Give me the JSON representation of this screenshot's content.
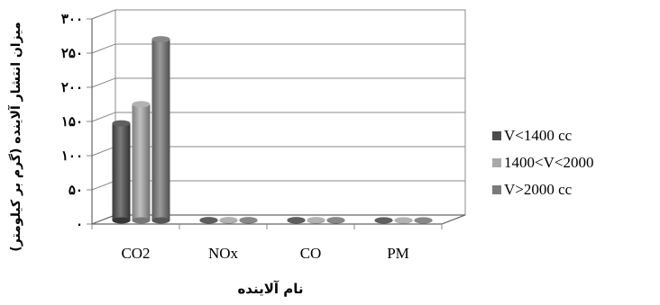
{
  "chart_data": {
    "type": "bar",
    "categories": [
      "CO2",
      "NOx",
      "CO",
      "PM"
    ],
    "series": [
      {
        "name": "V<1400 cc",
        "values": [
          142,
          0.5,
          0.5,
          0.1
        ],
        "color": "#4d4d4d"
      },
      {
        "name": "1400<V<2000",
        "values": [
          170,
          0.5,
          0.5,
          0.1
        ],
        "color": "#a9a9a9"
      },
      {
        "name": "V>2000 cc",
        "values": [
          265,
          0.5,
          0.5,
          0.1
        ],
        "color": "#7a7a7a"
      }
    ],
    "yticks": [
      0,
      50,
      100,
      150,
      200,
      250,
      300
    ],
    "ytick_labels": [
      "۰",
      "۵۰",
      "۱۰۰",
      "۱۵۰",
      "۲۰۰",
      "۲۵۰",
      "۳۰۰"
    ],
    "ylim": [
      0,
      300
    ],
    "xlabel": "نام آلاینده",
    "ylabel": "میزان انتشار آلاینده (گرم بر کیلومتر)",
    "grid": true,
    "legend_position": "right",
    "three_d": true
  }
}
